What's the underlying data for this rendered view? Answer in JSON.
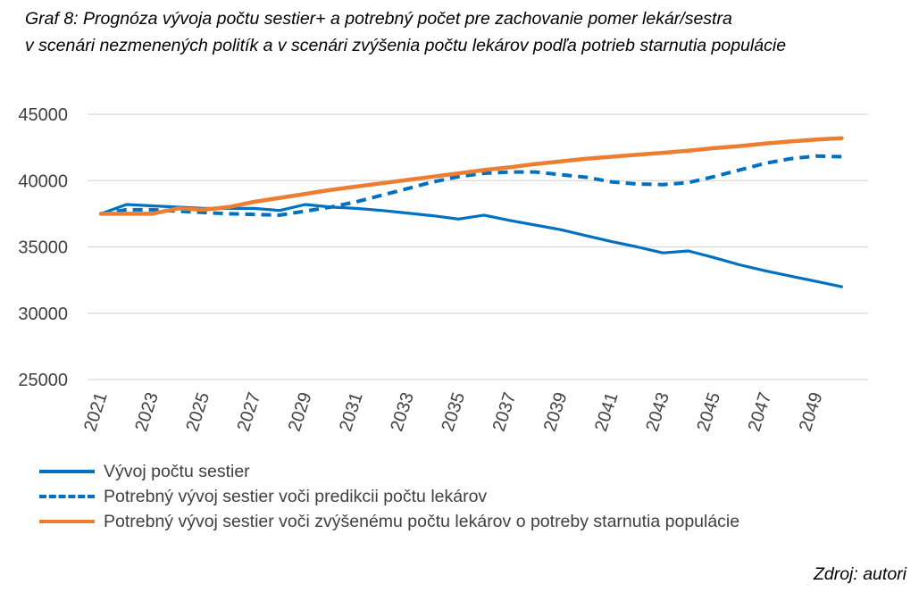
{
  "title": {
    "line1": "Graf 8: Prognóza vývoja počtu sestier+ a potrebný počet pre zachovanie pomer lekár/sestra",
    "line2": "v scenári nezmenených politík a v scenári zvýšenia počtu lekárov podľa potrieb starnutia populácie"
  },
  "source": "Zdroj: autori",
  "chart_data": {
    "type": "line",
    "x": [
      2021,
      2022,
      2023,
      2024,
      2025,
      2026,
      2027,
      2028,
      2029,
      2030,
      2031,
      2032,
      2033,
      2034,
      2035,
      2036,
      2037,
      2038,
      2039,
      2040,
      2041,
      2042,
      2043,
      2044,
      2045,
      2046,
      2047,
      2048,
      2049,
      2050
    ],
    "x_tick_labels": [
      "2021",
      "2023",
      "2025",
      "2027",
      "2029",
      "2031",
      "2033",
      "2035",
      "2037",
      "2039",
      "2041",
      "2043",
      "2045",
      "2047",
      "2049"
    ],
    "ylim": [
      25000,
      45000
    ],
    "y_ticks": [
      25000,
      30000,
      35000,
      40000,
      45000
    ],
    "grid": true,
    "legend_position": "bottom",
    "series": [
      {
        "name": "Vývoj počtu sestier",
        "color": "#0070C0",
        "style": "solid",
        "values": [
          37500,
          38200,
          38100,
          38000,
          37900,
          37900,
          37900,
          37750,
          38200,
          38000,
          37900,
          37750,
          37550,
          37350,
          37100,
          37400,
          37000,
          36650,
          36300,
          35850,
          35400,
          35000,
          34550,
          34700,
          34200,
          33650,
          33200,
          32800,
          32400,
          32000
        ]
      },
      {
        "name": "Potrebný vývoj sestier voči predikcii počtu lekárov",
        "color": "#0070C0",
        "style": "dashed",
        "values": [
          37500,
          37800,
          37800,
          37700,
          37600,
          37500,
          37450,
          37400,
          37700,
          38000,
          38400,
          38900,
          39400,
          39900,
          40300,
          40550,
          40650,
          40650,
          40450,
          40250,
          39900,
          39750,
          39700,
          39850,
          40300,
          40800,
          41300,
          41650,
          41850,
          41800
        ]
      },
      {
        "name": "Potrebný vývoj sestier voči zvýšenému počtu lekárov o potreby starnutia populácie",
        "color": "#ED7D31",
        "style": "solid",
        "values": [
          37500,
          37500,
          37500,
          37900,
          37800,
          38000,
          38400,
          38700,
          39000,
          39300,
          39550,
          39800,
          40050,
          40300,
          40550,
          40800,
          41000,
          41250,
          41450,
          41650,
          41800,
          41950,
          42100,
          42250,
          42450,
          42600,
          42800,
          42950,
          43100,
          43200
        ]
      }
    ]
  }
}
